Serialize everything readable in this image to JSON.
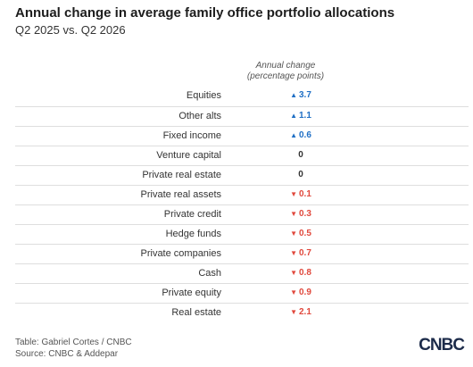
{
  "header": {
    "title": "Annual change in average family office portfolio allocations",
    "subtitle": "Q2 2025 vs. Q2 2026"
  },
  "table": {
    "column_header": [
      "Annual change",
      "(percentage points)"
    ],
    "rows": [
      {
        "label": "Equities",
        "change": "3.7",
        "direction": "up"
      },
      {
        "label": "Other alts",
        "change": "1.1",
        "direction": "up"
      },
      {
        "label": "Fixed income",
        "change": "0.6",
        "direction": "up"
      },
      {
        "label": "Venture capital",
        "change": "0",
        "direction": null
      },
      {
        "label": "Private real estate",
        "change": "0",
        "direction": null
      },
      {
        "label": "Private real assets",
        "change": "0.1",
        "direction": "down"
      },
      {
        "label": "Private credit",
        "change": "0.3",
        "direction": "down"
      },
      {
        "label": "Hedge funds",
        "change": "0.5",
        "direction": "down"
      },
      {
        "label": "Private companies",
        "change": "0.7",
        "direction": "down"
      },
      {
        "label": "Cash",
        "change": "0.8",
        "direction": "down"
      },
      {
        "label": "Private equity",
        "change": "0.9",
        "direction": "down"
      },
      {
        "label": "Real estate",
        "change": "2.1",
        "direction": "down"
      }
    ]
  },
  "footer": {
    "credit": "Table: Gabriel Cortes / CNBC",
    "source": "Source: CNBC & Addepar",
    "logo": "CNBC"
  }
}
